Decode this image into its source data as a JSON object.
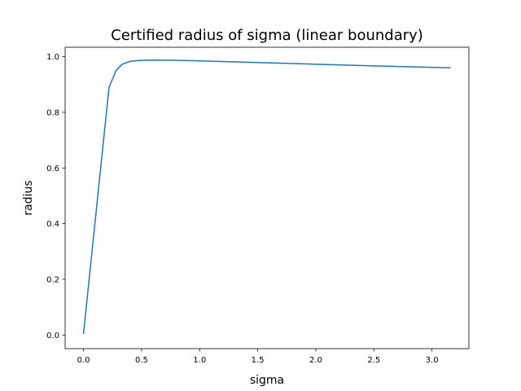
{
  "chart_data": {
    "type": "line",
    "title": "Certified radius of sigma (linear boundary)",
    "x_label": "sigma",
    "y_label": "radius",
    "x": [
      0.0,
      0.22,
      0.28,
      0.33,
      0.4,
      0.5,
      0.6,
      0.8,
      1.0,
      1.5,
      2.0,
      2.5,
      3.16
    ],
    "series": [
      {
        "color": "#1f77b4",
        "values": [
          0.004,
          0.89,
          0.95,
          0.972,
          0.983,
          0.987,
          0.988,
          0.987,
          0.985,
          0.979,
          0.973,
          0.967,
          0.96
        ]
      }
    ],
    "xlim": [
      -0.158,
      3.318
    ],
    "xticks": [
      {
        "value": 0,
        "label": "0.0"
      },
      0.5,
      {
        "value": 1,
        "label": "1.0"
      },
      1.5,
      {
        "value": 2,
        "label": "2.0"
      },
      2.5,
      {
        "value": 3,
        "label": "3.0"
      }
    ],
    "ylim": [
      -0.049,
      1.034
    ],
    "yticks": [
      {
        "value": 0,
        "label": "0.0"
      },
      0.2,
      0.4,
      0.6,
      0.8,
      {
        "value": 1,
        "label": "1.0"
      }
    ]
  }
}
